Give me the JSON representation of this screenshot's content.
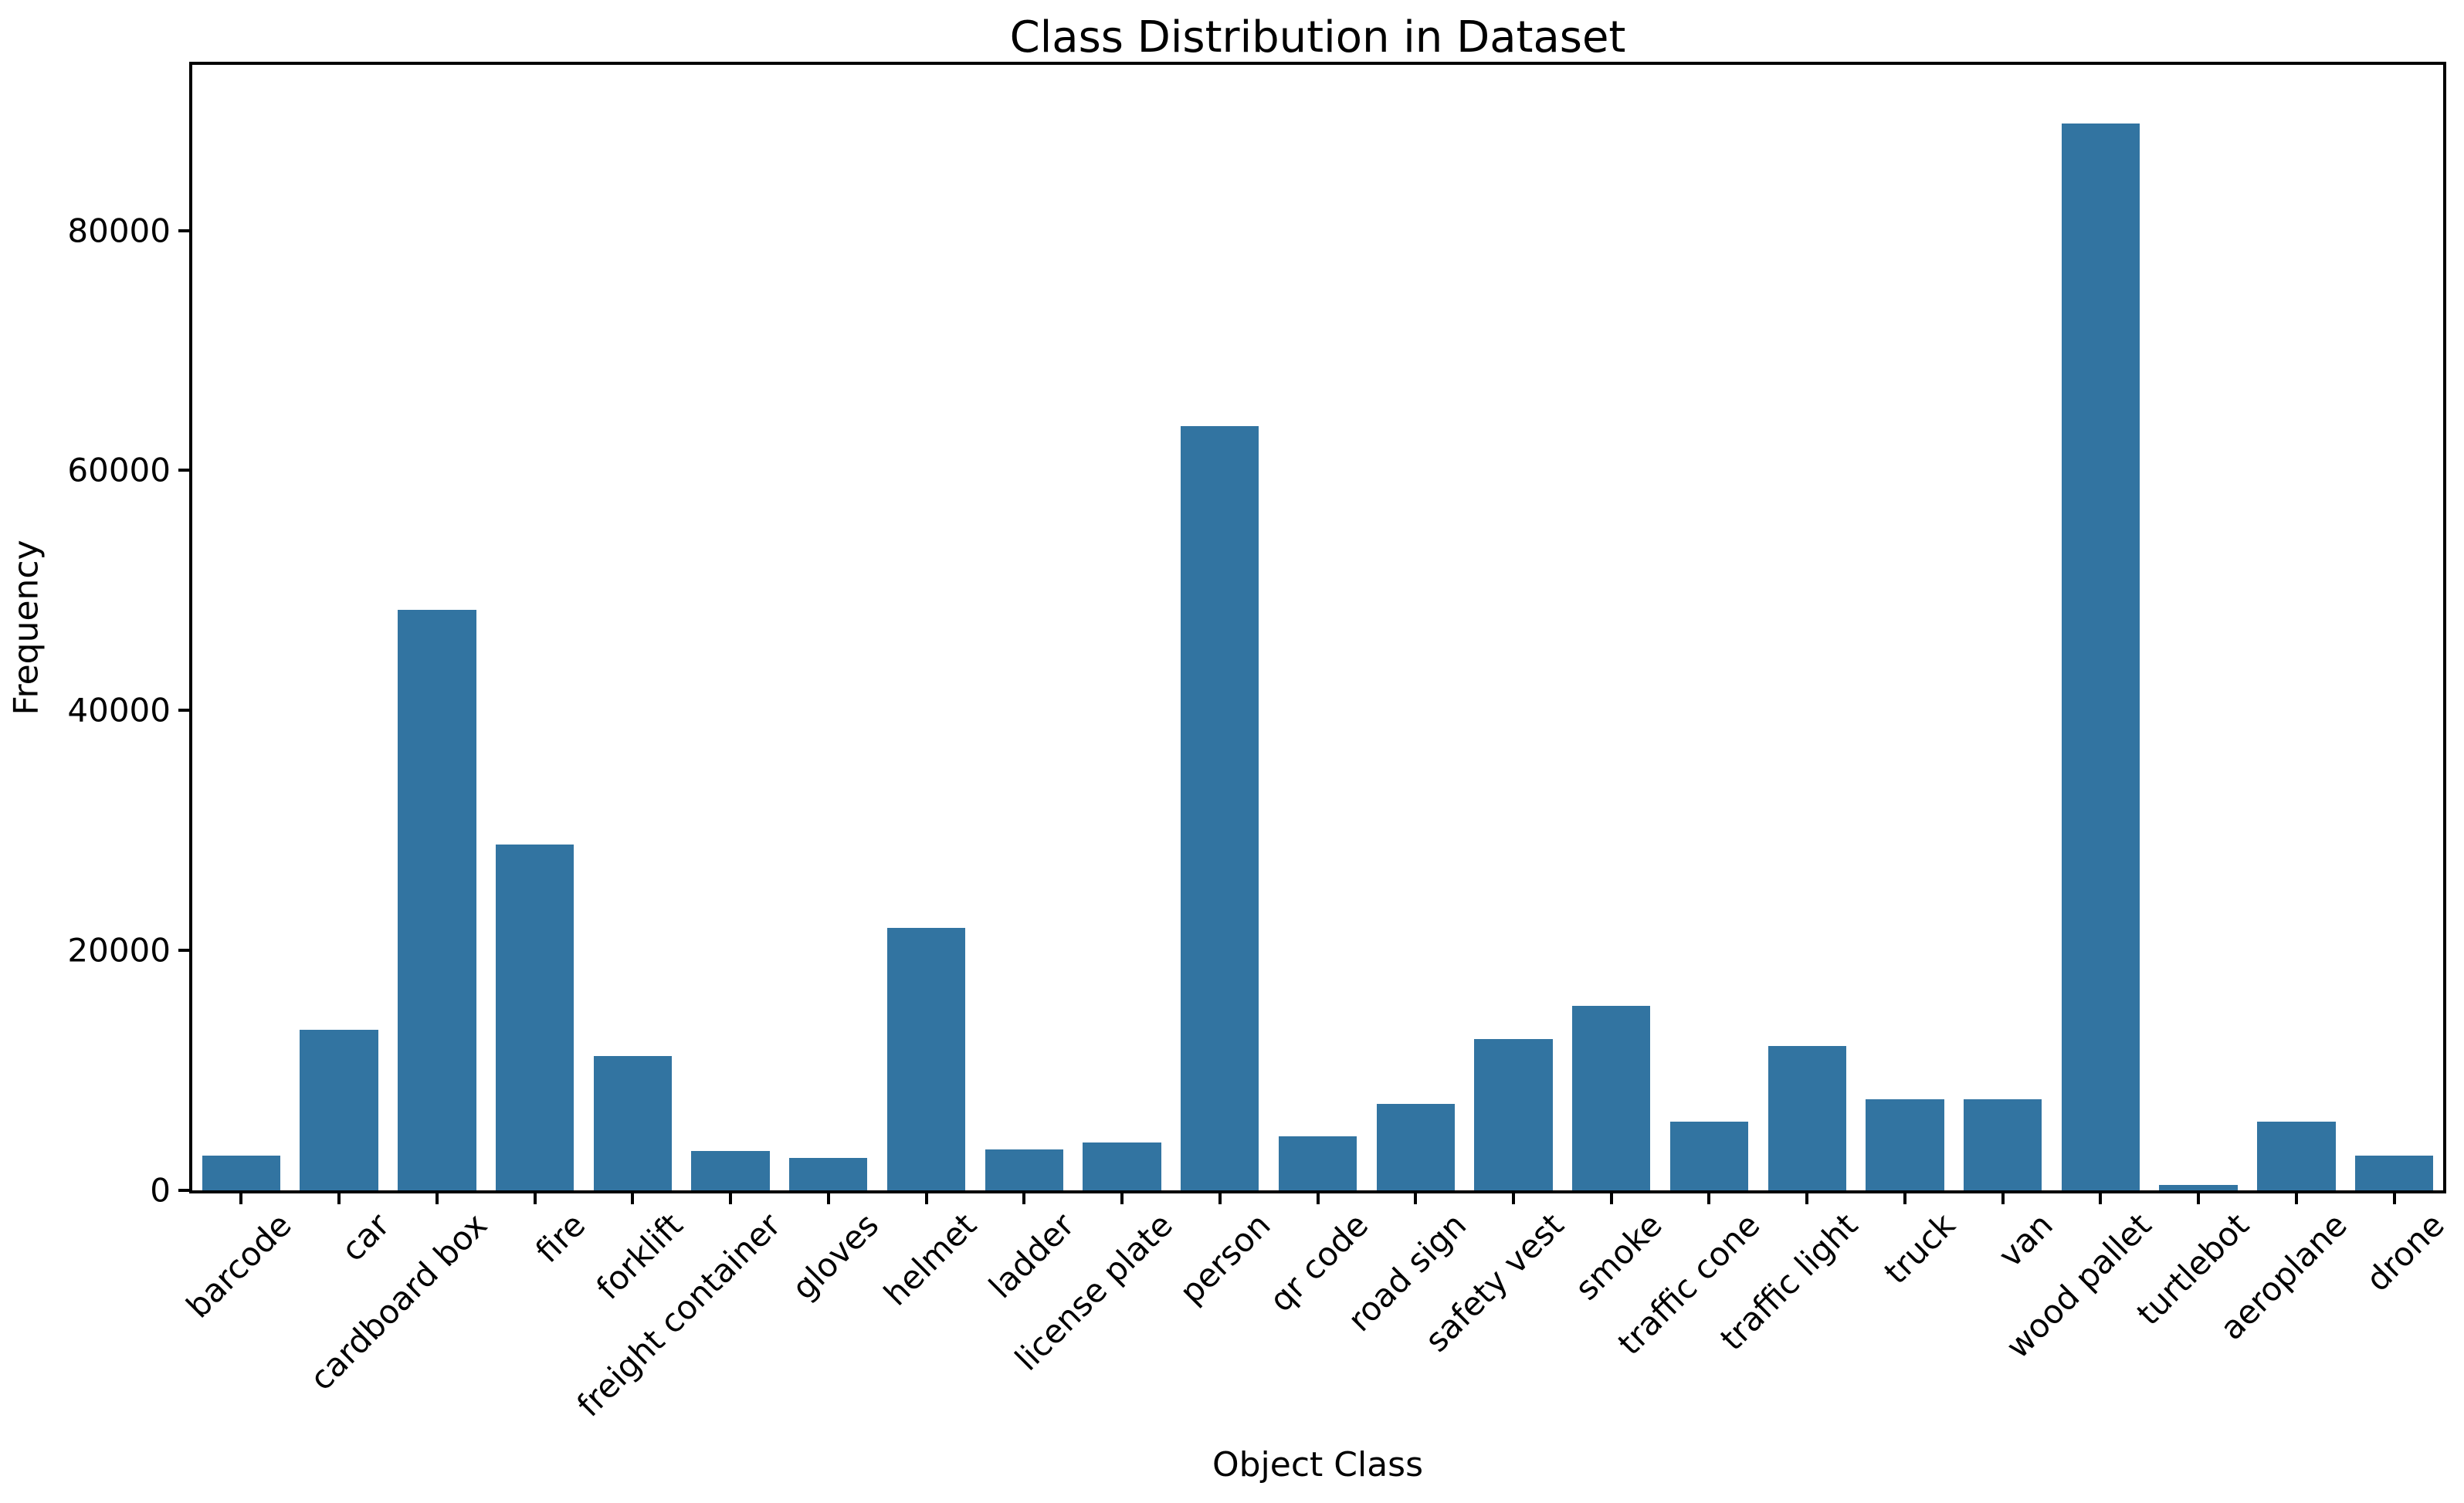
{
  "chart_data": {
    "type": "bar",
    "title": "Class Distribution in Dataset",
    "xlabel": "Object Class",
    "ylabel": "Frequency",
    "categories": [
      "barcode",
      "car",
      "cardboard box",
      "fire",
      "forklift",
      "freight container",
      "gloves",
      "helmet",
      "ladder",
      "license plate",
      "person",
      "qr code",
      "road sign",
      "safety vest",
      "smoke",
      "traffic cone",
      "traffic light",
      "truck",
      "van",
      "wood pallet",
      "turtlebot",
      "aeroplane",
      "drone"
    ],
    "values": [
      2900,
      13400,
      48400,
      28800,
      11200,
      3300,
      2700,
      21900,
      3400,
      4000,
      63700,
      4500,
      7200,
      12600,
      15400,
      5700,
      12000,
      7600,
      7600,
      88900,
      450,
      5700,
      2900
    ],
    "yticks": [
      0,
      20000,
      40000,
      60000,
      80000
    ],
    "ylim": [
      0,
      93800
    ],
    "bar_width_fraction": 0.8,
    "grid": false,
    "colors": {
      "bar": "#3274a1",
      "axis": "#000000",
      "text": "#000000",
      "background": "#ffffff"
    }
  }
}
